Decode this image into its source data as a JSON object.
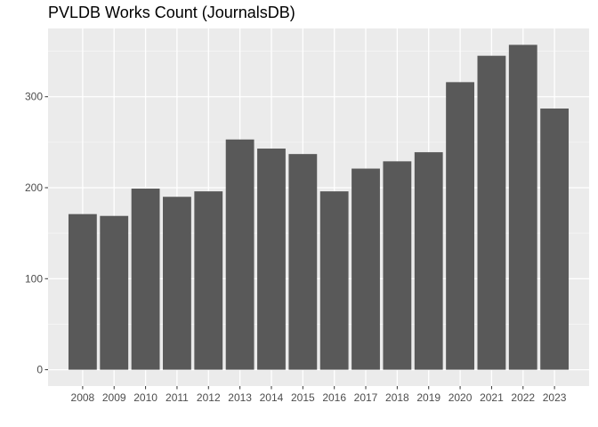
{
  "chart_data": {
    "type": "bar",
    "title": "PVLDB Works Count (JournalsDB)",
    "xlabel": "",
    "ylabel": "",
    "categories": [
      "2008",
      "2009",
      "2010",
      "2011",
      "2012",
      "2013",
      "2014",
      "2015",
      "2016",
      "2017",
      "2018",
      "2019",
      "2020",
      "2021",
      "2022",
      "2023"
    ],
    "values": [
      171,
      169,
      199,
      190,
      196,
      253,
      243,
      237,
      196,
      221,
      229,
      239,
      316,
      345,
      357,
      287
    ],
    "ylim": [
      -18,
      375
    ],
    "yticks": [
      0,
      100,
      200,
      300
    ],
    "ytick_labels": [
      "0",
      "100",
      "200",
      "300"
    ],
    "grid": true,
    "legend": "none",
    "colors": {
      "bar": "#595959",
      "panel": "#ebebeb",
      "grid_major": "#ffffff",
      "grid_minor": "#f5f5f5",
      "tick_text": "#4d4d4d",
      "tick_mark": "#333333"
    }
  }
}
